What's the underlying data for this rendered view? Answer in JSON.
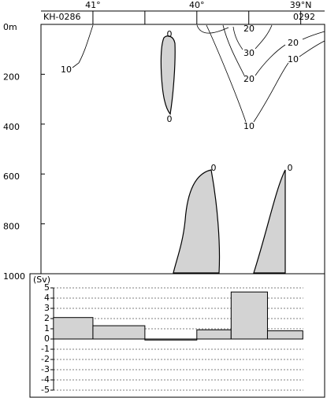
{
  "chart_data": [
    {
      "type": "contour",
      "stations": [
        "KH-0286",
        "0292"
      ],
      "xlim": [
        41.5,
        38.77
      ],
      "xticks": [
        {
          "value": 41,
          "label": "41°"
        },
        {
          "value": 40,
          "label": "40°"
        },
        {
          "value": 39,
          "label": "39°N"
        }
      ],
      "xminor_ticks": [
        40.5,
        39.5
      ],
      "ylim": [
        0,
        1000
      ],
      "yticks": [
        {
          "value": 0,
          "label": "0m"
        },
        200,
        400,
        600,
        800,
        1000
      ],
      "contour_labels": [
        "10",
        "0",
        "0",
        "20",
        "20",
        "30",
        "10",
        "20",
        "10",
        "0",
        "0"
      ]
    },
    {
      "type": "histogram",
      "unit": "(Sv)",
      "xlim": [
        41.5,
        38.77
      ],
      "bins": [
        41.38,
        41.0,
        40.5,
        40.0,
        39.67,
        39.32,
        38.98
      ],
      "values": [
        2.1,
        1.3,
        -0.1,
        0.9,
        4.6,
        0.8
      ],
      "color": "#d3d3d3",
      "ylim": [
        -5,
        5
      ],
      "yticks": [
        -5,
        -4,
        -3,
        -2,
        -1,
        0,
        1,
        2,
        3,
        4,
        5
      ],
      "grid": true
    }
  ]
}
